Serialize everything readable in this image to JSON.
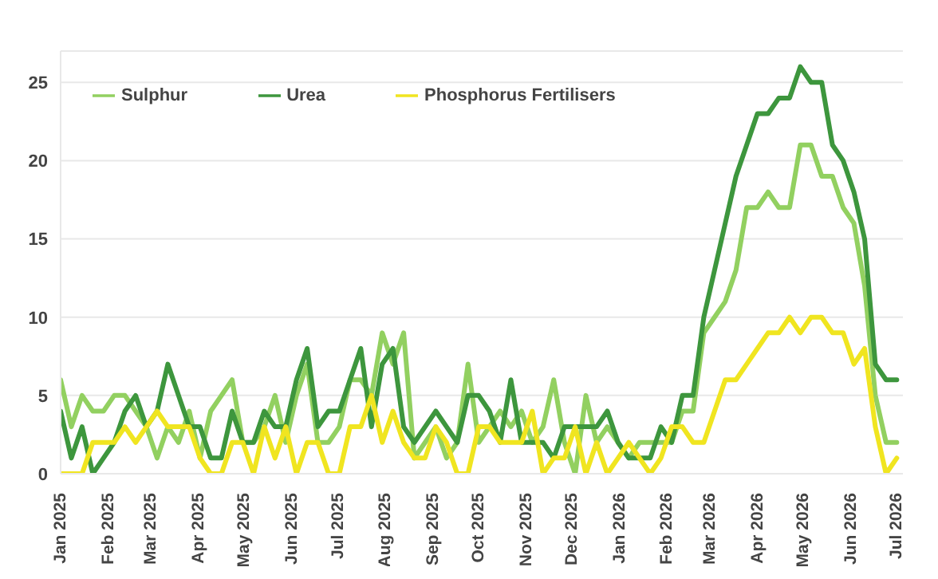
{
  "chart_data": {
    "type": "line",
    "x": [
      "2025-01-01",
      "2025-01-08",
      "2025-01-15",
      "2025-01-22",
      "2025-01-29",
      "2025-02-05",
      "2025-02-12",
      "2025-02-19",
      "2025-02-26",
      "2025-03-05",
      "2025-03-12",
      "2025-03-19",
      "2025-03-26",
      "2025-04-02",
      "2025-04-09",
      "2025-04-16",
      "2025-04-23",
      "2025-04-30",
      "2025-05-07",
      "2025-05-14",
      "2025-05-21",
      "2025-05-28",
      "2025-06-04",
      "2025-06-11",
      "2025-06-18",
      "2025-06-25",
      "2025-07-02",
      "2025-07-09",
      "2025-07-16",
      "2025-07-23",
      "2025-07-30",
      "2025-08-06",
      "2025-08-13",
      "2025-08-20",
      "2025-08-27",
      "2025-09-03",
      "2025-09-10",
      "2025-09-17",
      "2025-09-24",
      "2025-10-01",
      "2025-10-08",
      "2025-10-15",
      "2025-10-22",
      "2025-10-29",
      "2025-11-05",
      "2025-11-12",
      "2025-11-19",
      "2025-11-26",
      "2025-12-03",
      "2025-12-10",
      "2025-12-17",
      "2025-12-24",
      "2025-12-31",
      "2026-01-07",
      "2026-01-14",
      "2026-01-21",
      "2026-01-28",
      "2026-02-04",
      "2026-02-11",
      "2026-02-18",
      "2026-02-25",
      "2026-03-04",
      "2026-03-11",
      "2026-03-18",
      "2026-03-25",
      "2026-04-01",
      "2026-04-08",
      "2026-04-15",
      "2026-04-22",
      "2026-04-29",
      "2026-05-06",
      "2026-05-13",
      "2026-05-20",
      "2026-05-27",
      "2026-06-03",
      "2026-06-10",
      "2026-06-17",
      "2026-06-24",
      "2026-07-01"
    ],
    "series": [
      {
        "name": "Sulphur",
        "color": "#92d060",
        "values": [
          6,
          3,
          5,
          4,
          4,
          5,
          5,
          4,
          3,
          1,
          3,
          2,
          4,
          1,
          4,
          5,
          6,
          2,
          2,
          3,
          5,
          2,
          5,
          7,
          2,
          2,
          3,
          6,
          6,
          5,
          9,
          7,
          9,
          1,
          2,
          3,
          1,
          2,
          7,
          2,
          3,
          4,
          3,
          4,
          2,
          3,
          6,
          2,
          0,
          5,
          2,
          3,
          2,
          1,
          2,
          2,
          2,
          2,
          4,
          4,
          9,
          10,
          11,
          13,
          17,
          17,
          18,
          17,
          17,
          21,
          21,
          19,
          19,
          17,
          16,
          12,
          5,
          2,
          2
        ]
      },
      {
        "name": "Urea",
        "color": "#3d963d",
        "values": [
          4,
          1,
          3,
          0,
          1,
          2,
          4,
          5,
          3,
          4,
          7,
          5,
          3,
          3,
          1,
          1,
          4,
          2,
          2,
          4,
          3,
          3,
          6,
          8,
          3,
          4,
          4,
          6,
          8,
          3,
          7,
          8,
          3,
          2,
          3,
          4,
          3,
          2,
          5,
          5,
          4,
          2,
          6,
          2,
          2,
          2,
          1,
          3,
          3,
          3,
          3,
          4,
          2,
          1,
          1,
          1,
          3,
          2,
          5,
          5,
          10,
          13,
          16,
          19,
          21,
          23,
          23,
          24,
          24,
          26,
          25,
          25,
          21,
          20,
          18,
          15,
          7,
          6,
          6
        ]
      },
      {
        "name": "Phosphorus Fertilisers",
        "color": "#f0e520",
        "values": [
          0,
          0,
          0,
          2,
          2,
          2,
          3,
          2,
          3,
          4,
          3,
          3,
          3,
          1,
          0,
          0,
          2,
          2,
          0,
          3,
          1,
          3,
          0,
          2,
          2,
          0,
          0,
          3,
          3,
          5,
          2,
          4,
          2,
          1,
          1,
          3,
          2,
          0,
          0,
          3,
          3,
          2,
          2,
          2,
          4,
          0,
          1,
          1,
          3,
          0,
          2,
          0,
          1,
          2,
          1,
          0,
          1,
          3,
          3,
          2,
          2,
          4,
          6,
          6,
          7,
          8,
          9,
          9,
          10,
          9,
          10,
          10,
          9,
          9,
          7,
          8,
          3,
          0,
          1
        ]
      }
    ],
    "xlim": [
      "2025-01-01",
      "2026-07-05"
    ],
    "xticks": [
      {
        "value": "2025-01-01",
        "label": "Jan 2025"
      },
      {
        "value": "2025-02-01",
        "label": "Feb 2025"
      },
      {
        "value": "2025-03-01",
        "label": "Mar 2025"
      },
      {
        "value": "2025-04-01",
        "label": "Apr 2025"
      },
      {
        "value": "2025-05-01",
        "label": "May 2025"
      },
      {
        "value": "2025-06-01",
        "label": "Jun 2025"
      },
      {
        "value": "2025-07-01",
        "label": "Jul 2025"
      },
      {
        "value": "2025-08-01",
        "label": "Aug 2025"
      },
      {
        "value": "2025-09-01",
        "label": "Sep 2025"
      },
      {
        "value": "2025-10-01",
        "label": "Oct 2025"
      },
      {
        "value": "2025-11-01",
        "label": "Nov 2025"
      },
      {
        "value": "2025-12-01",
        "label": "Dec 2025"
      },
      {
        "value": "2026-01-01",
        "label": "Jan 2026"
      },
      {
        "value": "2026-02-01",
        "label": "Feb 2026"
      },
      {
        "value": "2026-03-01",
        "label": "Mar 2026"
      },
      {
        "value": "2026-04-01",
        "label": "Apr 2026"
      },
      {
        "value": "2026-05-01",
        "label": "May 2026"
      },
      {
        "value": "2026-06-01",
        "label": "Jun 2026"
      },
      {
        "value": "2026-07-01",
        "label": "Jul 2026"
      }
    ],
    "ylim": [
      0,
      27
    ],
    "yticks": [
      0,
      5,
      10,
      15,
      20,
      25
    ],
    "grid": "y",
    "legend": "top left",
    "marker": "none",
    "line_style": "solid"
  }
}
